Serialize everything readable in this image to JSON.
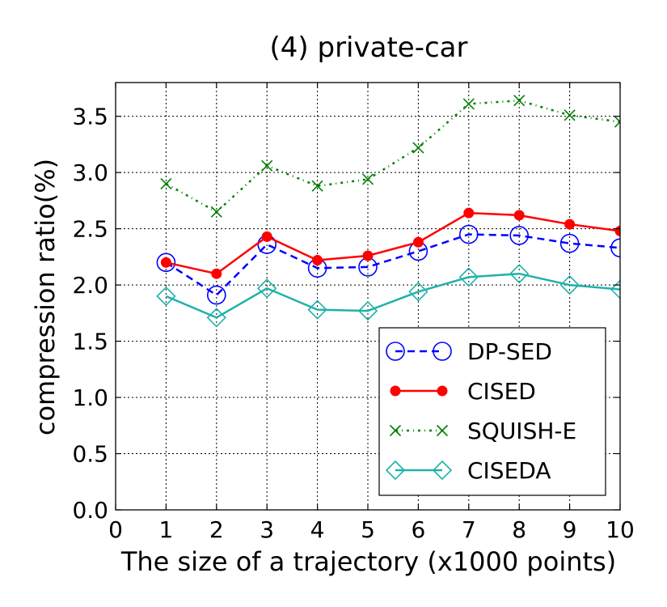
{
  "chart_data": {
    "type": "line",
    "title": "(4) private-car",
    "xlabel": "The size of a trajectory (x1000 points)",
    "ylabel": "compression ratio(%)",
    "xlim": [
      0,
      10
    ],
    "ylim": [
      0.0,
      3.8
    ],
    "x_ticks": [
      "0",
      "1",
      "2",
      "3",
      "4",
      "5",
      "6",
      "7",
      "8",
      "9",
      "10"
    ],
    "y_ticks": [
      "0.0",
      "0.5",
      "1.0",
      "1.5",
      "2.0",
      "2.5",
      "3.0",
      "3.5"
    ],
    "grid": true,
    "legend_position": "lower-right",
    "x": [
      1,
      2,
      3,
      4,
      5,
      6,
      7,
      8,
      9,
      10
    ],
    "series": [
      {
        "name": "DP-SED",
        "values": [
          2.2,
          1.91,
          2.36,
          2.15,
          2.16,
          2.3,
          2.45,
          2.44,
          2.37,
          2.33
        ],
        "color": "#0000ff",
        "marker": "open-circle",
        "line": "dashed"
      },
      {
        "name": "CISED",
        "values": [
          2.2,
          2.1,
          2.43,
          2.22,
          2.26,
          2.38,
          2.64,
          2.62,
          2.54,
          2.48
        ],
        "color": "#ff0000",
        "marker": "filled-circle",
        "line": "solid"
      },
      {
        "name": "SQUISH-E",
        "values": [
          2.9,
          2.65,
          3.06,
          2.88,
          2.94,
          3.22,
          3.61,
          3.64,
          3.51,
          3.45
        ],
        "color": "#008000",
        "marker": "x",
        "line": "dash-dot"
      },
      {
        "name": "CISEDA",
        "values": [
          1.9,
          1.71,
          1.97,
          1.78,
          1.77,
          1.94,
          2.07,
          2.1,
          2.0,
          1.96
        ],
        "color": "#20b2aa",
        "marker": "open-diamond",
        "line": "solid"
      }
    ]
  }
}
